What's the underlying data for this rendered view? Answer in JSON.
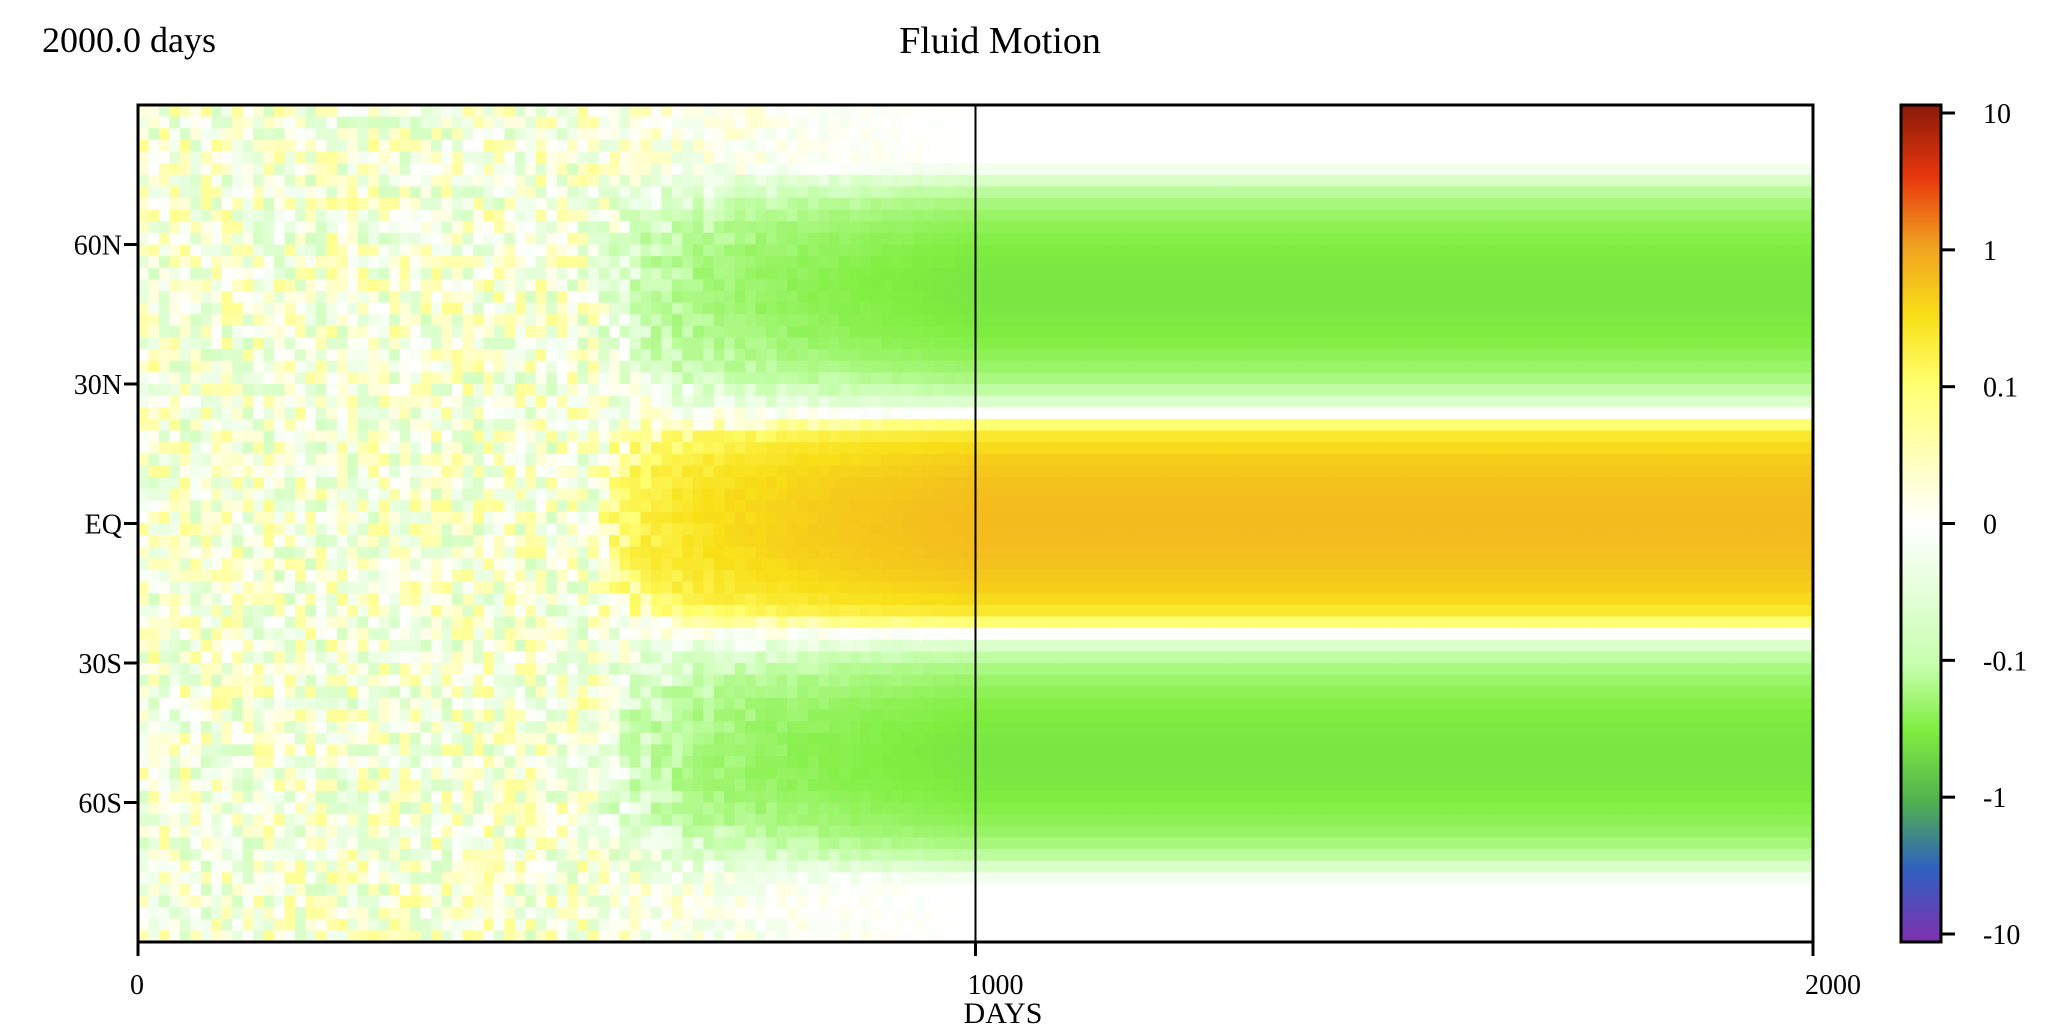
{
  "header": {
    "elapsed": "2000.0 days",
    "title": "Fluid Motion"
  },
  "chart_data": {
    "type": "heatmap",
    "title": "Fluid Motion",
    "xlabel": "DAYS",
    "ylabel": "",
    "xlim": [
      0,
      2000
    ],
    "ylim": [
      -90,
      90
    ],
    "x_ticks": [
      {
        "value": 0,
        "label": "0"
      },
      {
        "value": 1000,
        "label": "1000"
      },
      {
        "value": 2000,
        "label": "2000"
      }
    ],
    "y_ticks": [
      {
        "value": 60,
        "label": "60N"
      },
      {
        "value": 30,
        "label": "30N"
      },
      {
        "value": 0,
        "label": "EQ"
      },
      {
        "value": -30,
        "label": "30S"
      },
      {
        "value": -60,
        "label": "60S"
      }
    ],
    "vertical_marker": 1000,
    "colorbar": {
      "scale": "symlog",
      "range": [
        -10,
        10
      ],
      "ticks": [
        {
          "value": 10,
          "label": "10"
        },
        {
          "value": 1,
          "label": "1"
        },
        {
          "value": 0.1,
          "label": "0.1"
        },
        {
          "value": 0,
          "label": "0"
        },
        {
          "value": -0.1,
          "label": "-0.1"
        },
        {
          "value": -1,
          "label": "-1"
        },
        {
          "value": -10,
          "label": "-10"
        }
      ],
      "colors": {
        "plus10": "#8b1a0a",
        "plus3": "#e8380c",
        "plus1": "#f0a020",
        "plus03": "#f8e018",
        "plus01": "#ffff70",
        "zero": "#ffffff",
        "minus01": "#c8ffb0",
        "minus03": "#80ee40",
        "minus1": "#50b050",
        "minus3": "#3060c0",
        "minus10": "#8030b0"
      }
    },
    "regime_equilibrated": {
      "day_range": [
        1000,
        2000
      ],
      "equatorial_band_value": 0.6,
      "equatorial_band_edge_lat": 23,
      "midlatitude_band_value": -0.35,
      "polar_value": 0
    },
    "regime_transient": {
      "day_range": [
        0,
        1000
      ],
      "noise_phase_end_day": 550,
      "noise_amplitude": 0.08
    }
  }
}
